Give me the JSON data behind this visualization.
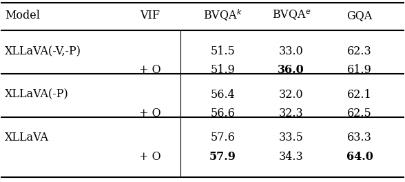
{
  "title": "",
  "columns": [
    "Model",
    "VIF",
    "",
    "BVQA$^k$",
    "BVQA$^e$",
    "GQA"
  ],
  "col_headers": [
    "Model",
    "VIF",
    "BVQA^k",
    "BVQA^e",
    "GQA"
  ],
  "rows": [
    {
      "model": "XLLaVA(-V,-P)",
      "vif": "",
      "bvqa_k_1": "51.5",
      "bvqa_e_1": "33.0",
      "gqa_1": "62.3",
      "vif2": "+ O",
      "bvqa_k_2": "51.9",
      "bvqa_e_2": "36.0",
      "gqa_2": "61.9",
      "bold": {
        "bvqa_e_2": true
      }
    },
    {
      "model": "XLLaVA(-P)",
      "vif": "",
      "bvqa_k_1": "56.4",
      "bvqa_e_1": "32.0",
      "gqa_1": "62.1",
      "vif2": "+ O",
      "bvqa_k_2": "56.6",
      "bvqa_e_2": "32.3",
      "gqa_2": "62.5",
      "bold": {}
    },
    {
      "model": "XLLaVA",
      "vif": "",
      "bvqa_k_1": "57.6",
      "bvqa_e_1": "33.5",
      "gqa_1": "63.3",
      "vif2": "+ O",
      "bvqa_k_2": "57.9",
      "bvqa_e_2": "34.3",
      "gqa_2": "64.0",
      "bold": {
        "bvqa_k_2": true,
        "gqa_2": true
      }
    }
  ],
  "bg_color": "#ffffff",
  "text_color": "#000000",
  "font_size": 11.5
}
